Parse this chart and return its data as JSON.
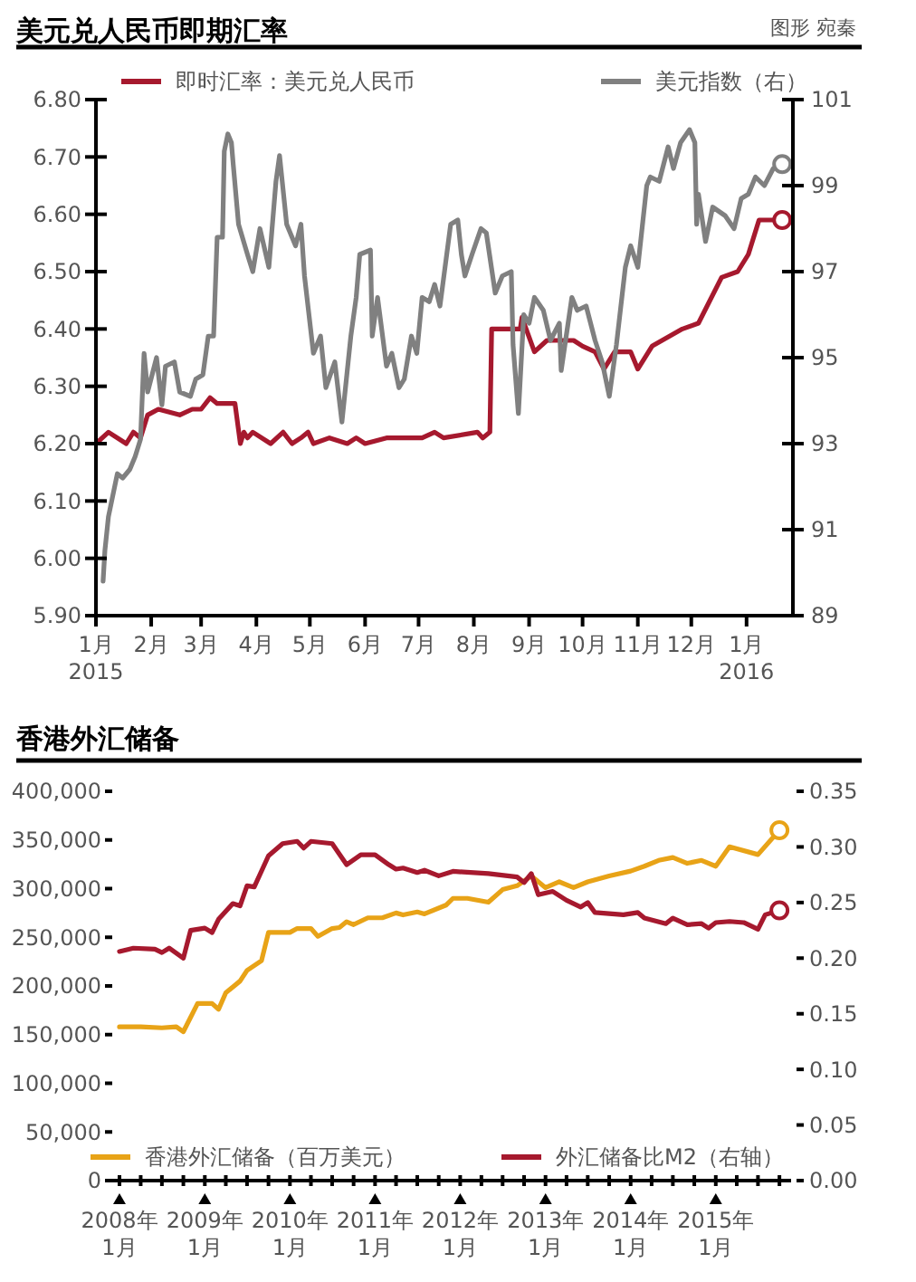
{
  "chart_data": [
    {
      "type": "line",
      "title": "美元兑人民币即期汇率",
      "annotations": [
        "图形 宛秦"
      ],
      "legend": "top",
      "grid": false,
      "xlim": [
        "2015-01-01",
        "2016-01-27"
      ],
      "xticks": [
        {
          "value": "2015-01-01",
          "label": "1月\n2015"
        },
        {
          "value": "2015-02-01",
          "label": "2月"
        },
        {
          "value": "2015-03-01",
          "label": "3月"
        },
        {
          "value": "2015-04-01",
          "label": "4月"
        },
        {
          "value": "2015-05-01",
          "label": "5月"
        },
        {
          "value": "2015-06-01",
          "label": "6月"
        },
        {
          "value": "2015-07-01",
          "label": "7月"
        },
        {
          "value": "2015-08-01",
          "label": "8月"
        },
        {
          "value": "2015-09-01",
          "label": "9月"
        },
        {
          "value": "2015-10-01",
          "label": "10月"
        },
        {
          "value": "2015-11-01",
          "label": "11月"
        },
        {
          "value": "2015-12-01",
          "label": "12月"
        },
        {
          "value": "2016-01-01",
          "label": "1月\n2016"
        }
      ],
      "ylim": [
        5.9,
        6.8
      ],
      "yticks": [
        {
          "value": 5.9,
          "label": "5.90"
        },
        {
          "value": 6.0,
          "label": "6.00"
        },
        {
          "value": 6.1,
          "label": "6.10"
        },
        {
          "value": 6.2,
          "label": "6.20"
        },
        {
          "value": 6.3,
          "label": "6.30"
        },
        {
          "value": 6.4,
          "label": "6.40"
        },
        {
          "value": 6.5,
          "label": "6.50"
        },
        {
          "value": 6.6,
          "label": "6.60"
        },
        {
          "value": 6.7,
          "label": "6.70"
        },
        {
          "value": 6.8,
          "label": "6.80"
        }
      ],
      "y2lim": [
        89,
        101
      ],
      "y2ticks": [
        89,
        91,
        93,
        95,
        97,
        99,
        101
      ],
      "series": [
        {
          "name": "即时汇率：美元兑人民币",
          "color": "#a6192e",
          "x": [
            "2015-01-01",
            "2015-01-08",
            "2015-01-18",
            "2015-01-22",
            "2015-01-26",
            "2015-01-30",
            "2015-02-05",
            "2015-02-17",
            "2015-02-24",
            "2015-03-01",
            "2015-03-06",
            "2015-03-10",
            "2015-03-20",
            "2015-03-23",
            "2015-03-25",
            "2015-03-27",
            "2015-03-30",
            "2015-04-09",
            "2015-04-16",
            "2015-04-21",
            "2015-04-26",
            "2015-04-30",
            "2015-05-03",
            "2015-05-12",
            "2015-05-22",
            "2015-05-27",
            "2015-06-01",
            "2015-06-13",
            "2015-07-03",
            "2015-07-10",
            "2015-07-15",
            "2015-08-03",
            "2015-08-06",
            "2015-08-10",
            "2015-08-11",
            "2015-08-27",
            "2015-08-28",
            "2015-09-04",
            "2015-09-11",
            "2015-09-26",
            "2015-10-01",
            "2015-10-08",
            "2015-10-13",
            "2015-10-19",
            "2015-10-28",
            "2015-11-01",
            "2015-11-09",
            "2015-11-26",
            "2015-12-05",
            "2015-12-18",
            "2015-12-27",
            "2016-01-02",
            "2016-01-08",
            "2016-01-21"
          ],
          "values": [
            6.2,
            6.22,
            6.2,
            6.22,
            6.21,
            6.25,
            6.26,
            6.25,
            6.26,
            6.26,
            6.28,
            6.27,
            6.27,
            6.2,
            6.22,
            6.21,
            6.22,
            6.2,
            6.22,
            6.2,
            6.21,
            6.22,
            6.2,
            6.21,
            6.2,
            6.21,
            6.2,
            6.21,
            6.21,
            6.22,
            6.21,
            6.22,
            6.21,
            6.22,
            6.4,
            6.4,
            6.42,
            6.36,
            6.38,
            6.38,
            6.37,
            6.36,
            6.33,
            6.36,
            6.36,
            6.33,
            6.37,
            6.4,
            6.41,
            6.49,
            6.5,
            6.53,
            6.59,
            6.59
          ]
        },
        {
          "name": "美元指数（右）",
          "color": "#808080",
          "axis": "y2",
          "x": [
            "2015-01-05",
            "2015-01-06",
            "2015-01-08",
            "2015-01-10",
            "2015-01-13",
            "2015-01-16",
            "2015-01-20",
            "2015-01-23",
            "2015-01-26",
            "2015-01-28",
            "2015-01-30",
            "2015-02-04",
            "2015-02-07",
            "2015-02-09",
            "2015-02-14",
            "2015-02-17",
            "2015-02-23",
            "2015-02-26",
            "2015-03-02",
            "2015-03-05",
            "2015-03-08",
            "2015-03-10",
            "2015-03-13",
            "2015-03-14",
            "2015-03-16",
            "2015-03-18",
            "2015-03-19",
            "2015-03-22",
            "2015-03-27",
            "2015-03-30",
            "2015-04-03",
            "2015-04-08",
            "2015-04-12",
            "2015-04-14",
            "2015-04-18",
            "2015-04-23",
            "2015-04-26",
            "2015-04-28",
            "2015-05-03",
            "2015-05-07",
            "2015-05-10",
            "2015-05-15",
            "2015-05-19",
            "2015-05-24",
            "2015-05-27",
            "2015-05-29",
            "2015-06-04",
            "2015-06-05",
            "2015-06-08",
            "2015-06-13",
            "2015-06-16",
            "2015-06-20",
            "2015-06-23",
            "2015-06-27",
            "2015-06-30",
            "2015-07-03",
            "2015-07-07",
            "2015-07-10",
            "2015-07-13",
            "2015-07-19",
            "2015-07-23",
            "2015-07-25",
            "2015-07-27",
            "2015-07-31",
            "2015-08-05",
            "2015-08-08",
            "2015-08-13",
            "2015-08-17",
            "2015-08-22",
            "2015-08-23",
            "2015-08-26",
            "2015-08-29",
            "2015-09-01",
            "2015-09-04",
            "2015-09-09",
            "2015-09-13",
            "2015-09-18",
            "2015-09-19",
            "2015-09-25",
            "2015-09-28",
            "2015-10-03",
            "2015-10-08",
            "2015-10-12",
            "2015-10-16",
            "2015-10-20",
            "2015-10-25",
            "2015-10-28",
            "2015-11-01",
            "2015-11-06",
            "2015-11-08",
            "2015-11-13",
            "2015-11-18",
            "2015-11-21",
            "2015-11-25",
            "2015-11-30",
            "2015-12-03",
            "2015-12-04",
            "2015-12-05",
            "2015-12-09",
            "2015-12-13",
            "2015-12-20",
            "2015-12-25",
            "2015-12-29",
            "2016-01-02",
            "2016-01-06",
            "2016-01-11",
            "2016-01-16",
            "2016-01-21"
          ],
          "values": [
            89.8,
            90.5,
            91.3,
            91.7,
            92.3,
            92.2,
            92.4,
            92.7,
            93.1,
            95.1,
            94.2,
            95.0,
            93.9,
            94.8,
            94.9,
            94.2,
            94.1,
            94.5,
            94.6,
            95.5,
            95.5,
            97.8,
            97.8,
            99.8,
            100.2,
            100.0,
            99.5,
            98.1,
            97.4,
            97.0,
            98.0,
            97.1,
            99.1,
            99.7,
            98.1,
            97.6,
            98.1,
            96.9,
            95.1,
            95.5,
            94.3,
            94.9,
            93.5,
            95.5,
            96.4,
            97.4,
            97.5,
            95.5,
            96.4,
            94.8,
            95.1,
            94.3,
            94.5,
            95.5,
            95.1,
            96.4,
            96.3,
            96.7,
            96.2,
            98.1,
            98.2,
            97.4,
            96.9,
            97.4,
            98.0,
            97.9,
            96.5,
            96.9,
            97.0,
            95.3,
            93.7,
            96.0,
            95.8,
            96.4,
            96.1,
            95.4,
            95.8,
            94.7,
            96.4,
            96.1,
            96.2,
            95.4,
            94.9,
            94.1,
            95.3,
            97.1,
            97.6,
            97.1,
            99.0,
            99.2,
            99.1,
            99.9,
            99.4,
            100.0,
            100.3,
            100.0,
            98.1,
            98.8,
            97.7,
            98.5,
            98.3,
            98.0,
            98.7,
            98.8,
            99.2,
            99.0,
            99.4,
            99.5
          ]
        }
      ]
    },
    {
      "type": "line",
      "title": "香港外汇储备",
      "legend": "bottom",
      "grid": false,
      "xlim": [
        "2007-12-01",
        "2015-11-20"
      ],
      "xticks": [
        {
          "value": "2008-01-01",
          "label": "2008年\n1月"
        },
        {
          "value": "2008-04-01",
          "label": null
        },
        {
          "value": "2008-07-01",
          "label": null
        },
        {
          "value": "2008-10-01",
          "label": null
        },
        {
          "value": "2009-01-01",
          "label": "2009年\n1月"
        },
        {
          "value": "2009-04-01",
          "label": null
        },
        {
          "value": "2009-07-01",
          "label": null
        },
        {
          "value": "2009-10-01",
          "label": null
        },
        {
          "value": "2010-01-01",
          "label": "2010年\n1月"
        },
        {
          "value": "2010-04-01",
          "label": null
        },
        {
          "value": "2010-07-01",
          "label": null
        },
        {
          "value": "2010-10-01",
          "label": null
        },
        {
          "value": "2011-01-01",
          "label": "2011年\n1月"
        },
        {
          "value": "2011-04-01",
          "label": null
        },
        {
          "value": "2011-07-01",
          "label": null
        },
        {
          "value": "2011-10-01",
          "label": null
        },
        {
          "value": "2012-01-01",
          "label": "2012年\n1月"
        },
        {
          "value": "2012-04-01",
          "label": null
        },
        {
          "value": "2012-07-01",
          "label": null
        },
        {
          "value": "2012-10-01",
          "label": null
        },
        {
          "value": "2013-01-01",
          "label": "2013年\n1月"
        },
        {
          "value": "2013-04-01",
          "label": null
        },
        {
          "value": "2013-07-01",
          "label": null
        },
        {
          "value": "2013-10-01",
          "label": null
        },
        {
          "value": "2014-01-01",
          "label": "2014年\n1月"
        },
        {
          "value": "2014-04-01",
          "label": null
        },
        {
          "value": "2014-07-01",
          "label": null
        },
        {
          "value": "2014-10-01",
          "label": null
        },
        {
          "value": "2015-01-01",
          "label": "2015年\n1月"
        },
        {
          "value": "2015-04-01",
          "label": null
        },
        {
          "value": "2015-07-01",
          "label": null
        },
        {
          "value": "2015-10-01",
          "label": null
        }
      ],
      "ylim": [
        0,
        400000
      ],
      "yticks": [
        0,
        {
          "value": 50000,
          "label": "50,000"
        },
        {
          "value": 100000,
          "label": "100,000"
        },
        {
          "value": 150000,
          "label": "150,000"
        },
        {
          "value": 200000,
          "label": "200,000"
        },
        {
          "value": 250000,
          "label": "250,000"
        },
        {
          "value": 300000,
          "label": "300,000"
        },
        {
          "value": 350000,
          "label": "350,000"
        },
        {
          "value": 400000,
          "label": "400,000"
        }
      ],
      "y2lim": [
        0,
        0.35
      ],
      "y2ticks": [
        {
          "value": 0,
          "label": "0.00"
        },
        {
          "value": 0.05,
          "label": "0.05"
        },
        {
          "value": 0.1,
          "label": "0.10"
        },
        {
          "value": 0.15,
          "label": "0.15"
        },
        {
          "value": 0.2,
          "label": "0.20"
        },
        {
          "value": 0.25,
          "label": "0.25"
        },
        {
          "value": 0.3,
          "label": "0.30"
        },
        {
          "value": 0.35,
          "label": "0.35"
        }
      ],
      "series": [
        {
          "name": "香港外汇储备（百万美元）",
          "color": "#e8a317",
          "x": [
            "2008-01",
            "2008-04",
            "2008-07",
            "2008-09",
            "2008-10",
            "2008-12",
            "2009-02",
            "2009-03",
            "2009-04",
            "2009-06",
            "2009-07",
            "2009-09",
            "2009-10",
            "2010-01",
            "2010-02",
            "2010-04",
            "2010-05",
            "2010-07",
            "2010-08",
            "2010-09",
            "2010-10",
            "2010-12",
            "2011-02",
            "2011-04",
            "2011-05",
            "2011-07",
            "2011-08",
            "2011-11",
            "2011-12",
            "2012-02",
            "2012-05",
            "2012-07",
            "2012-09",
            "2012-11",
            "2013-01",
            "2013-03",
            "2013-05",
            "2013-07",
            "2013-10",
            "2014-01",
            "2014-03",
            "2014-05",
            "2014-07",
            "2014-09",
            "2014-11",
            "2015-01",
            "2015-03",
            "2015-07",
            "2015-10"
          ],
          "values": [
            158000,
            158000,
            157000,
            158000,
            153000,
            182000,
            182000,
            176000,
            193000,
            205000,
            216000,
            226000,
            255000,
            255000,
            259000,
            259000,
            251000,
            259000,
            260000,
            266000,
            263000,
            270000,
            270000,
            275000,
            273000,
            276000,
            274000,
            283000,
            290000,
            290000,
            286000,
            299000,
            303000,
            313000,
            301000,
            307000,
            301000,
            307000,
            313000,
            318000,
            323000,
            329000,
            332000,
            326000,
            329000,
            323000,
            343000,
            335000,
            360000
          ]
        },
        {
          "name": "外汇储备比M2（右轴）",
          "color": "#a6192e",
          "axis": "y2",
          "x": [
            "2008-01",
            "2008-03",
            "2008-06",
            "2008-07",
            "2008-08",
            "2008-10",
            "2008-11",
            "2009-01",
            "2009-02",
            "2009-03",
            "2009-05",
            "2009-06",
            "2009-07",
            "2009-08",
            "2009-10",
            "2009-12",
            "2010-02",
            "2010-03",
            "2010-04",
            "2010-07",
            "2010-09",
            "2010-11",
            "2011-01",
            "2011-03",
            "2011-04",
            "2011-05",
            "2011-07",
            "2011-08",
            "2011-10",
            "2011-12",
            "2012-05",
            "2012-09",
            "2012-10",
            "2012-11",
            "2012-12",
            "2013-02",
            "2013-04",
            "2013-06",
            "2013-07",
            "2013-08",
            "2013-10",
            "2013-12",
            "2014-02",
            "2014-03",
            "2014-06",
            "2014-07",
            "2014-09",
            "2014-11",
            "2014-12",
            "2015-01",
            "2015-03",
            "2015-05",
            "2015-07",
            "2015-08",
            "2015-10"
          ],
          "values": [
            0.206,
            0.209,
            0.208,
            0.205,
            0.209,
            0.2,
            0.225,
            0.227,
            0.223,
            0.235,
            0.249,
            0.247,
            0.265,
            0.264,
            0.292,
            0.303,
            0.305,
            0.299,
            0.305,
            0.303,
            0.284,
            0.293,
            0.293,
            0.284,
            0.28,
            0.281,
            0.277,
            0.279,
            0.274,
            0.278,
            0.276,
            0.273,
            0.268,
            0.276,
            0.257,
            0.26,
            0.252,
            0.246,
            0.25,
            0.241,
            0.24,
            0.239,
            0.241,
            0.236,
            0.231,
            0.236,
            0.23,
            0.231,
            0.227,
            0.232,
            0.233,
            0.232,
            0.226,
            0.239,
            0.243
          ]
        }
      ]
    }
  ]
}
